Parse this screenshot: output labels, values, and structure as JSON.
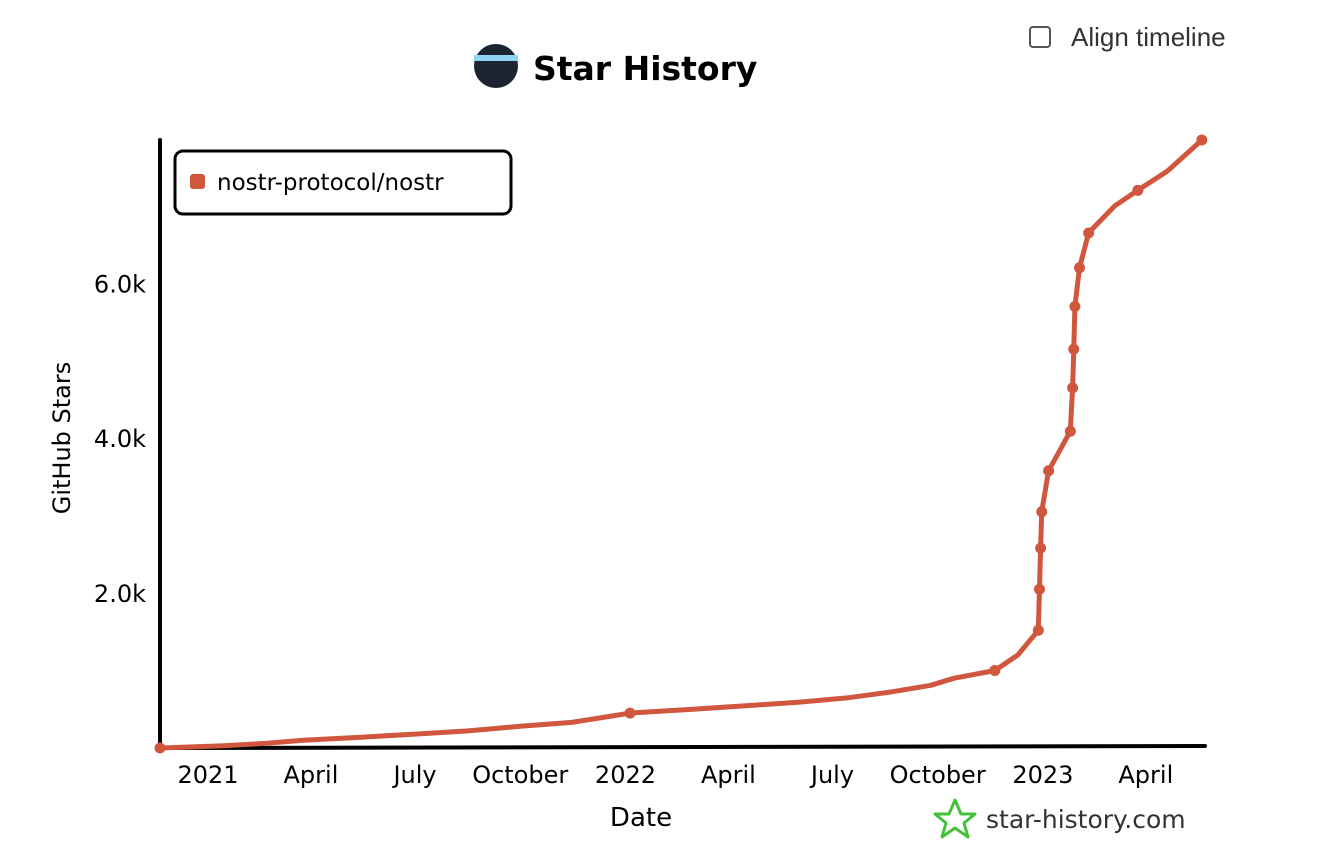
{
  "header": {
    "align_timeline_label": "Align timeline",
    "align_timeline_checked": false
  },
  "footer": {
    "brand": "star-history.com",
    "brand_color": "#44c038"
  },
  "chart_data": {
    "type": "line",
    "title": "Star History",
    "xlabel": "Date",
    "ylabel": "GitHub Stars",
    "x_ticks": [
      "2021",
      "April",
      "July",
      "October",
      "2022",
      "April",
      "July",
      "October",
      "2023",
      "April"
    ],
    "y_ticks": [
      "2.0k",
      "4.0k",
      "6.0k"
    ],
    "y_tick_values": [
      2000,
      4000,
      6000
    ],
    "ylim": [
      0,
      7900
    ],
    "xlim": [
      "2020-11-20",
      "2023-05-21"
    ],
    "grid": false,
    "legend_position": "top-left",
    "series": [
      {
        "name": "nostr-protocol/nostr",
        "color": "#d0573d",
        "points": [
          {
            "x": "2020-11-20",
            "y": 0
          },
          {
            "x": "2021-01-15",
            "y": 30
          },
          {
            "x": "2021-02-20",
            "y": 60
          },
          {
            "x": "2021-03-25",
            "y": 100
          },
          {
            "x": "2021-05-15",
            "y": 140
          },
          {
            "x": "2021-07-01",
            "y": 180
          },
          {
            "x": "2021-08-15",
            "y": 220
          },
          {
            "x": "2021-10-01",
            "y": 280
          },
          {
            "x": "2021-11-15",
            "y": 330
          },
          {
            "x": "2022-01-05",
            "y": 450
          },
          {
            "x": "2022-03-01",
            "y": 500
          },
          {
            "x": "2022-05-01",
            "y": 560
          },
          {
            "x": "2022-06-01",
            "y": 590
          },
          {
            "x": "2022-07-15",
            "y": 650
          },
          {
            "x": "2022-08-20",
            "y": 720
          },
          {
            "x": "2022-09-25",
            "y": 810
          },
          {
            "x": "2022-10-15",
            "y": 900
          },
          {
            "x": "2022-11-20",
            "y": 1000
          },
          {
            "x": "2022-12-10",
            "y": 1200
          },
          {
            "x": "2022-12-28",
            "y": 1520
          },
          {
            "x": "2022-12-29",
            "y": 2050
          },
          {
            "x": "2022-12-30",
            "y": 2580
          },
          {
            "x": "2022-12-31",
            "y": 3050
          },
          {
            "x": "2023-01-06",
            "y": 3580
          },
          {
            "x": "2023-01-15",
            "y": 3820
          },
          {
            "x": "2023-01-25",
            "y": 4090
          },
          {
            "x": "2023-01-27",
            "y": 4650
          },
          {
            "x": "2023-01-28",
            "y": 5150
          },
          {
            "x": "2023-01-29",
            "y": 5700
          },
          {
            "x": "2023-02-02",
            "y": 6200
          },
          {
            "x": "2023-02-10",
            "y": 6650
          },
          {
            "x": "2023-03-05",
            "y": 7000
          },
          {
            "x": "2023-03-25",
            "y": 7200
          },
          {
            "x": "2023-04-20",
            "y": 7450
          },
          {
            "x": "2023-05-20",
            "y": 7850
          }
        ],
        "markers": [
          {
            "x": "2020-11-20",
            "y": 0
          },
          {
            "x": "2022-01-05",
            "y": 450
          },
          {
            "x": "2022-11-20",
            "y": 1000
          },
          {
            "x": "2022-12-28",
            "y": 1520
          },
          {
            "x": "2022-12-29",
            "y": 2050
          },
          {
            "x": "2022-12-30",
            "y": 2580
          },
          {
            "x": "2022-12-31",
            "y": 3050
          },
          {
            "x": "2023-01-06",
            "y": 3580
          },
          {
            "x": "2023-01-25",
            "y": 4090
          },
          {
            "x": "2023-01-27",
            "y": 4650
          },
          {
            "x": "2023-01-28",
            "y": 5150
          },
          {
            "x": "2023-01-29",
            "y": 5700
          },
          {
            "x": "2023-02-02",
            "y": 6200
          },
          {
            "x": "2023-02-10",
            "y": 6650
          },
          {
            "x": "2023-03-25",
            "y": 7200
          },
          {
            "x": "2023-05-20",
            "y": 7850
          }
        ]
      }
    ]
  }
}
